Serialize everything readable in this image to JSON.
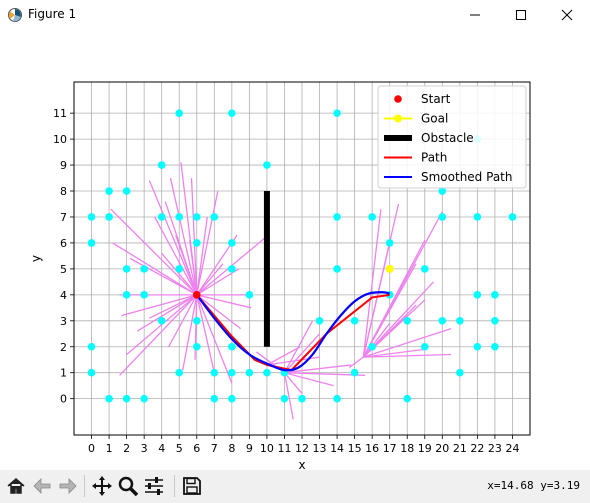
{
  "window": {
    "title": "Figure 1",
    "controls": [
      "minimize-icon",
      "maximize-icon",
      "close-icon"
    ]
  },
  "toolbar": {
    "tools": [
      "home-icon",
      "back-arrow-icon",
      "forward-arrow-icon",
      "pan-icon",
      "zoom-icon",
      "configure-subplots-icon",
      "save-icon"
    ],
    "coord_readout": "x=14.68 y=3.19"
  },
  "chart_data": {
    "type": "scatter",
    "xlabel": "x",
    "ylabel": "y",
    "xlim": [
      -1,
      25
    ],
    "ylim": [
      -1.4,
      12.2
    ],
    "xticks": [
      0,
      1,
      2,
      3,
      4,
      5,
      6,
      7,
      8,
      9,
      10,
      11,
      12,
      13,
      14,
      15,
      16,
      17,
      18,
      19,
      20,
      21,
      22,
      23,
      24
    ],
    "yticks": [
      0,
      1,
      2,
      3,
      4,
      5,
      6,
      7,
      8,
      9,
      10,
      11
    ],
    "grid": true,
    "legend": {
      "placement": "top-right",
      "entries": [
        "Start",
        "Goal",
        "Obstacle",
        "Path",
        "Smoothed Path"
      ]
    },
    "colors": {
      "start": "#ff0000",
      "goal": "#ffff00",
      "obstacle": "#000000",
      "path": "#ff0000",
      "smoothed": "#0000ff",
      "nodes": "#00ffff",
      "edges": "#ee82ee"
    },
    "start": [
      6,
      4
    ],
    "goal": [
      17,
      5
    ],
    "obstacle": [
      [
        10,
        2
      ],
      [
        10,
        8
      ]
    ],
    "nodes": [
      [
        0,
        7
      ],
      [
        0,
        6
      ],
      [
        0,
        2
      ],
      [
        0,
        1
      ],
      [
        1,
        8
      ],
      [
        1,
        7
      ],
      [
        1,
        0
      ],
      [
        2,
        8
      ],
      [
        2,
        5
      ],
      [
        2,
        4
      ],
      [
        2,
        0
      ],
      [
        3,
        5
      ],
      [
        3,
        4
      ],
      [
        3,
        0
      ],
      [
        4,
        9
      ],
      [
        4,
        7
      ],
      [
        4,
        3
      ],
      [
        5,
        11
      ],
      [
        5,
        7
      ],
      [
        5,
        5
      ],
      [
        5,
        1
      ],
      [
        6,
        7
      ],
      [
        6,
        6
      ],
      [
        6,
        3
      ],
      [
        6,
        2
      ],
      [
        7,
        7
      ],
      [
        7,
        1
      ],
      [
        7,
        0
      ],
      [
        8,
        11
      ],
      [
        8,
        6
      ],
      [
        8,
        5
      ],
      [
        8,
        2
      ],
      [
        8,
        1
      ],
      [
        8,
        0
      ],
      [
        9,
        4
      ],
      [
        9,
        1
      ],
      [
        10,
        9
      ],
      [
        10,
        1
      ],
      [
        11,
        1
      ],
      [
        11,
        0
      ],
      [
        12,
        0
      ],
      [
        13,
        3
      ],
      [
        14,
        11
      ],
      [
        14,
        7
      ],
      [
        14,
        5
      ],
      [
        14,
        0
      ],
      [
        15,
        3
      ],
      [
        15,
        1
      ],
      [
        16,
        7
      ],
      [
        16,
        2
      ],
      [
        17,
        6
      ],
      [
        17,
        4
      ],
      [
        18,
        3
      ],
      [
        18,
        0
      ],
      [
        19,
        5
      ],
      [
        19,
        2
      ],
      [
        20,
        8
      ],
      [
        20,
        7
      ],
      [
        20,
        3
      ],
      [
        21,
        3
      ],
      [
        21,
        1
      ],
      [
        22,
        10
      ],
      [
        22,
        7
      ],
      [
        22,
        4
      ],
      [
        22,
        2
      ],
      [
        23,
        4
      ],
      [
        23,
        3
      ],
      [
        23,
        2
      ],
      [
        24,
        7
      ]
    ],
    "edges": [
      [
        [
          6,
          4
        ],
        [
          3.3,
          8.4
        ]
      ],
      [
        [
          6,
          4
        ],
        [
          4.5,
          8.5
        ]
      ],
      [
        [
          6,
          4
        ],
        [
          5.1,
          9.1
        ]
      ],
      [
        [
          6,
          4
        ],
        [
          5.7,
          8.5
        ]
      ],
      [
        [
          6,
          4
        ],
        [
          7.2,
          8.0
        ]
      ],
      [
        [
          6,
          4
        ],
        [
          1.1,
          7.3
        ]
      ],
      [
        [
          6,
          4
        ],
        [
          1.2,
          6.0
        ]
      ],
      [
        [
          6,
          4
        ],
        [
          2.2,
          5.4
        ]
      ],
      [
        [
          6,
          4
        ],
        [
          3.6,
          7.0
        ]
      ],
      [
        [
          6,
          4
        ],
        [
          4.2,
          7.6
        ]
      ],
      [
        [
          6,
          4
        ],
        [
          4.8,
          6.3
        ]
      ],
      [
        [
          6,
          4
        ],
        [
          5.6,
          6.1
        ]
      ],
      [
        [
          6,
          4
        ],
        [
          6.6,
          7.0
        ]
      ],
      [
        [
          6,
          4
        ],
        [
          7.5,
          5.2
        ]
      ],
      [
        [
          6,
          4
        ],
        [
          8.4,
          5.0
        ]
      ],
      [
        [
          6,
          4
        ],
        [
          9.9,
          6.2
        ]
      ],
      [
        [
          6,
          4
        ],
        [
          8.3,
          6.3
        ]
      ],
      [
        [
          6,
          4
        ],
        [
          1.6,
          4.0
        ]
      ],
      [
        [
          6,
          4
        ],
        [
          1.7,
          3.2
        ]
      ],
      [
        [
          6,
          4
        ],
        [
          2.6,
          2.6
        ]
      ],
      [
        [
          6,
          4
        ],
        [
          3.3,
          3.1
        ]
      ],
      [
        [
          6,
          4
        ],
        [
          2.0,
          1.7
        ]
      ],
      [
        [
          6,
          4
        ],
        [
          1.6,
          0.9
        ]
      ],
      [
        [
          6,
          4
        ],
        [
          4.4,
          2.0
        ]
      ],
      [
        [
          6,
          4
        ],
        [
          5.2,
          1.1
        ]
      ],
      [
        [
          6,
          4
        ],
        [
          5.9,
          1.5
        ]
      ],
      [
        [
          6,
          4
        ],
        [
          7.0,
          1.0
        ]
      ],
      [
        [
          6,
          4
        ],
        [
          8.0,
          0.6
        ]
      ],
      [
        [
          6,
          4
        ],
        [
          9.1,
          3.5
        ]
      ],
      [
        [
          6,
          4
        ],
        [
          8.5,
          2.7
        ]
      ],
      [
        [
          6,
          4
        ],
        [
          9.0,
          4.0
        ]
      ],
      [
        [
          6,
          4
        ],
        [
          4.0,
          5.6
        ]
      ],
      [
        [
          15.5,
          1.6
        ],
        [
          19.5,
          4.5
        ]
      ],
      [
        [
          15.5,
          1.6
        ],
        [
          20.0,
          7.2
        ]
      ],
      [
        [
          15.5,
          1.6
        ],
        [
          19.0,
          6.1
        ]
      ],
      [
        [
          15.5,
          1.6
        ],
        [
          18.5,
          5.2
        ]
      ],
      [
        [
          15.5,
          1.6
        ],
        [
          17.5,
          7.5
        ]
      ],
      [
        [
          15.5,
          1.6
        ],
        [
          16.5,
          7.3
        ]
      ],
      [
        [
          15.5,
          1.6
        ],
        [
          17.0,
          6.0
        ]
      ],
      [
        [
          15.5,
          1.6
        ],
        [
          18.0,
          3.2
        ]
      ],
      [
        [
          15.5,
          1.6
        ],
        [
          19.0,
          3.8
        ]
      ],
      [
        [
          15.5,
          1.6
        ],
        [
          20.5,
          2.7
        ]
      ],
      [
        [
          15.5,
          1.6
        ],
        [
          20.5,
          1.7
        ]
      ],
      [
        [
          15.5,
          1.6
        ],
        [
          18.0,
          4.8
        ]
      ],
      [
        [
          15.5,
          1.6
        ],
        [
          17.0,
          2.9
        ]
      ],
      [
        [
          15.5,
          1.6
        ],
        [
          19.0,
          1.9
        ]
      ],
      [
        [
          15.5,
          1.6
        ],
        [
          14.7,
          1.2
        ]
      ],
      [
        [
          15.5,
          1.6
        ],
        [
          18.5,
          3.6
        ]
      ],
      [
        [
          11,
          1
        ],
        [
          12.6,
          3.0
        ]
      ],
      [
        [
          11,
          1
        ],
        [
          14.8,
          1.3
        ]
      ],
      [
        [
          11,
          1
        ],
        [
          15.6,
          0.9
        ]
      ],
      [
        [
          11,
          1
        ],
        [
          12.0,
          0.2
        ]
      ],
      [
        [
          11,
          1
        ],
        [
          11.5,
          -0.8
        ]
      ],
      [
        [
          11,
          1
        ],
        [
          13.0,
          2.5
        ]
      ],
      [
        [
          11,
          1
        ],
        [
          13.8,
          0.5
        ]
      ],
      [
        [
          11,
          1
        ],
        [
          9.4,
          1.8
        ]
      ],
      [
        [
          10,
          1.3
        ],
        [
          13.0,
          1.6
        ]
      ],
      [
        [
          10,
          1.3
        ],
        [
          11.9,
          2.0
        ]
      ]
    ],
    "path": [
      [
        6,
        4
      ],
      [
        8,
        2.4
      ],
      [
        9.3,
        1.5
      ],
      [
        10,
        1.3
      ],
      [
        11.4,
        1.1
      ],
      [
        13.4,
        2.5
      ],
      [
        16,
        3.9
      ],
      [
        17,
        4
      ]
    ],
    "smoothed_path": [
      [
        6,
        4
      ],
      [
        7,
        3.1
      ],
      [
        8,
        2.3
      ],
      [
        9,
        1.7
      ],
      [
        10,
        1.35
      ],
      [
        11,
        1.1
      ],
      [
        11.8,
        1.2
      ],
      [
        12.6,
        1.7
      ],
      [
        13.4,
        2.5
      ],
      [
        14.2,
        3.2
      ],
      [
        15,
        3.75
      ],
      [
        15.8,
        4.05
      ],
      [
        16.6,
        4.1
      ],
      [
        17,
        4.05
      ]
    ]
  }
}
